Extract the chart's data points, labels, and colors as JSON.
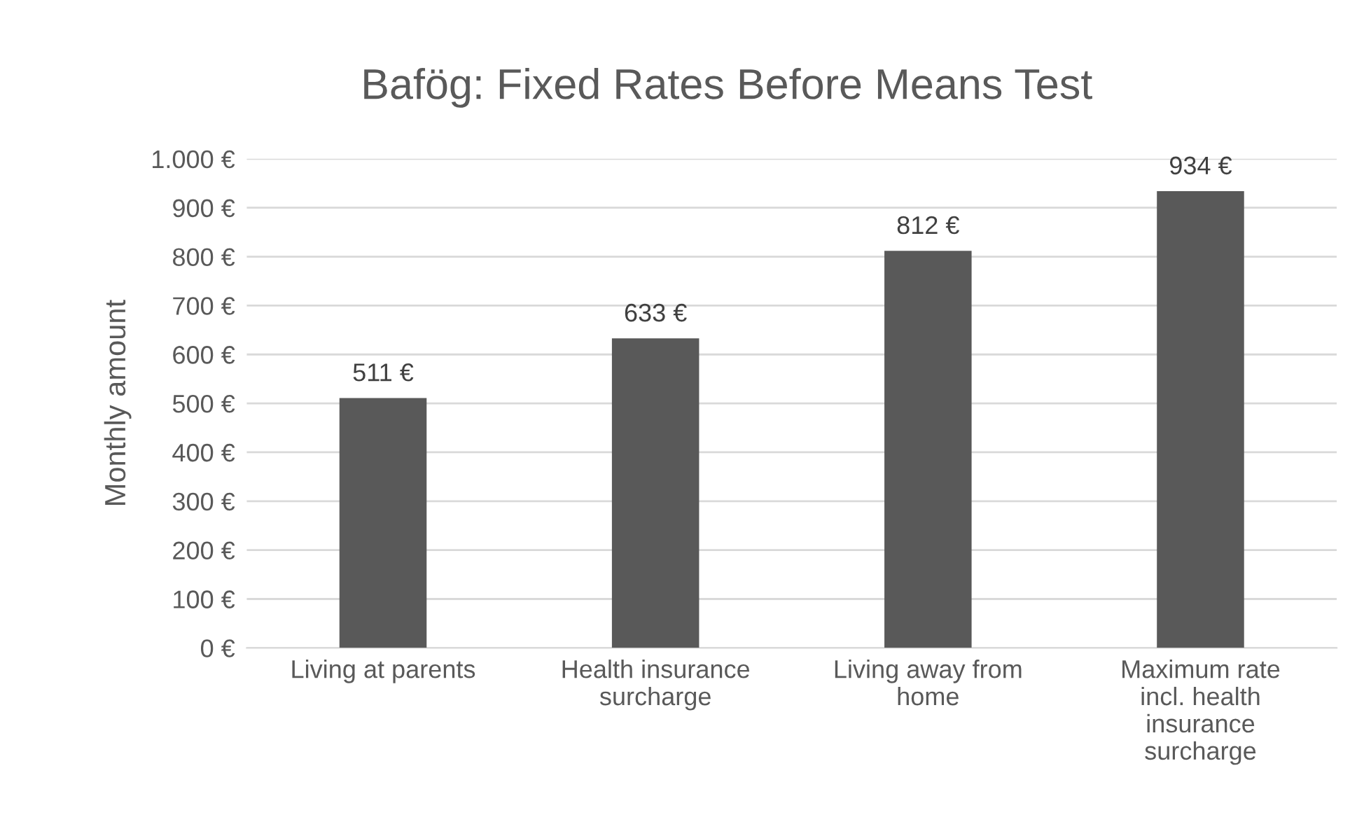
{
  "chart_data": {
    "type": "bar",
    "title": "Bafög: Fixed Rates Before Means Test",
    "ylabel": "Monthly amount",
    "categories": [
      "Living at parents",
      "Health insurance\nsurcharge",
      "Living away from\nhome",
      "Maximum rate\nincl. health\ninsurance\nsurcharge"
    ],
    "values": [
      511,
      633,
      812,
      934
    ],
    "color": "#595959",
    "value_labels": [
      "511 €",
      "633 €",
      "812 €",
      "934 €"
    ],
    "ylim": [
      0,
      1000
    ],
    "yticks": [
      {
        "value": 0,
        "label": "0 €"
      },
      {
        "value": 100,
        "label": "100 €"
      },
      {
        "value": 200,
        "label": "200 €"
      },
      {
        "value": 300,
        "label": "300 €"
      },
      {
        "value": 400,
        "label": "400 €"
      },
      {
        "value": 500,
        "label": "500 €"
      },
      {
        "value": 600,
        "label": "600 €"
      },
      {
        "value": 700,
        "label": "700 €"
      },
      {
        "value": 800,
        "label": "800 €"
      },
      {
        "value": 900,
        "label": "900 €"
      },
      {
        "value": 1000,
        "label": "1.000 €"
      }
    ],
    "grid": "y"
  }
}
